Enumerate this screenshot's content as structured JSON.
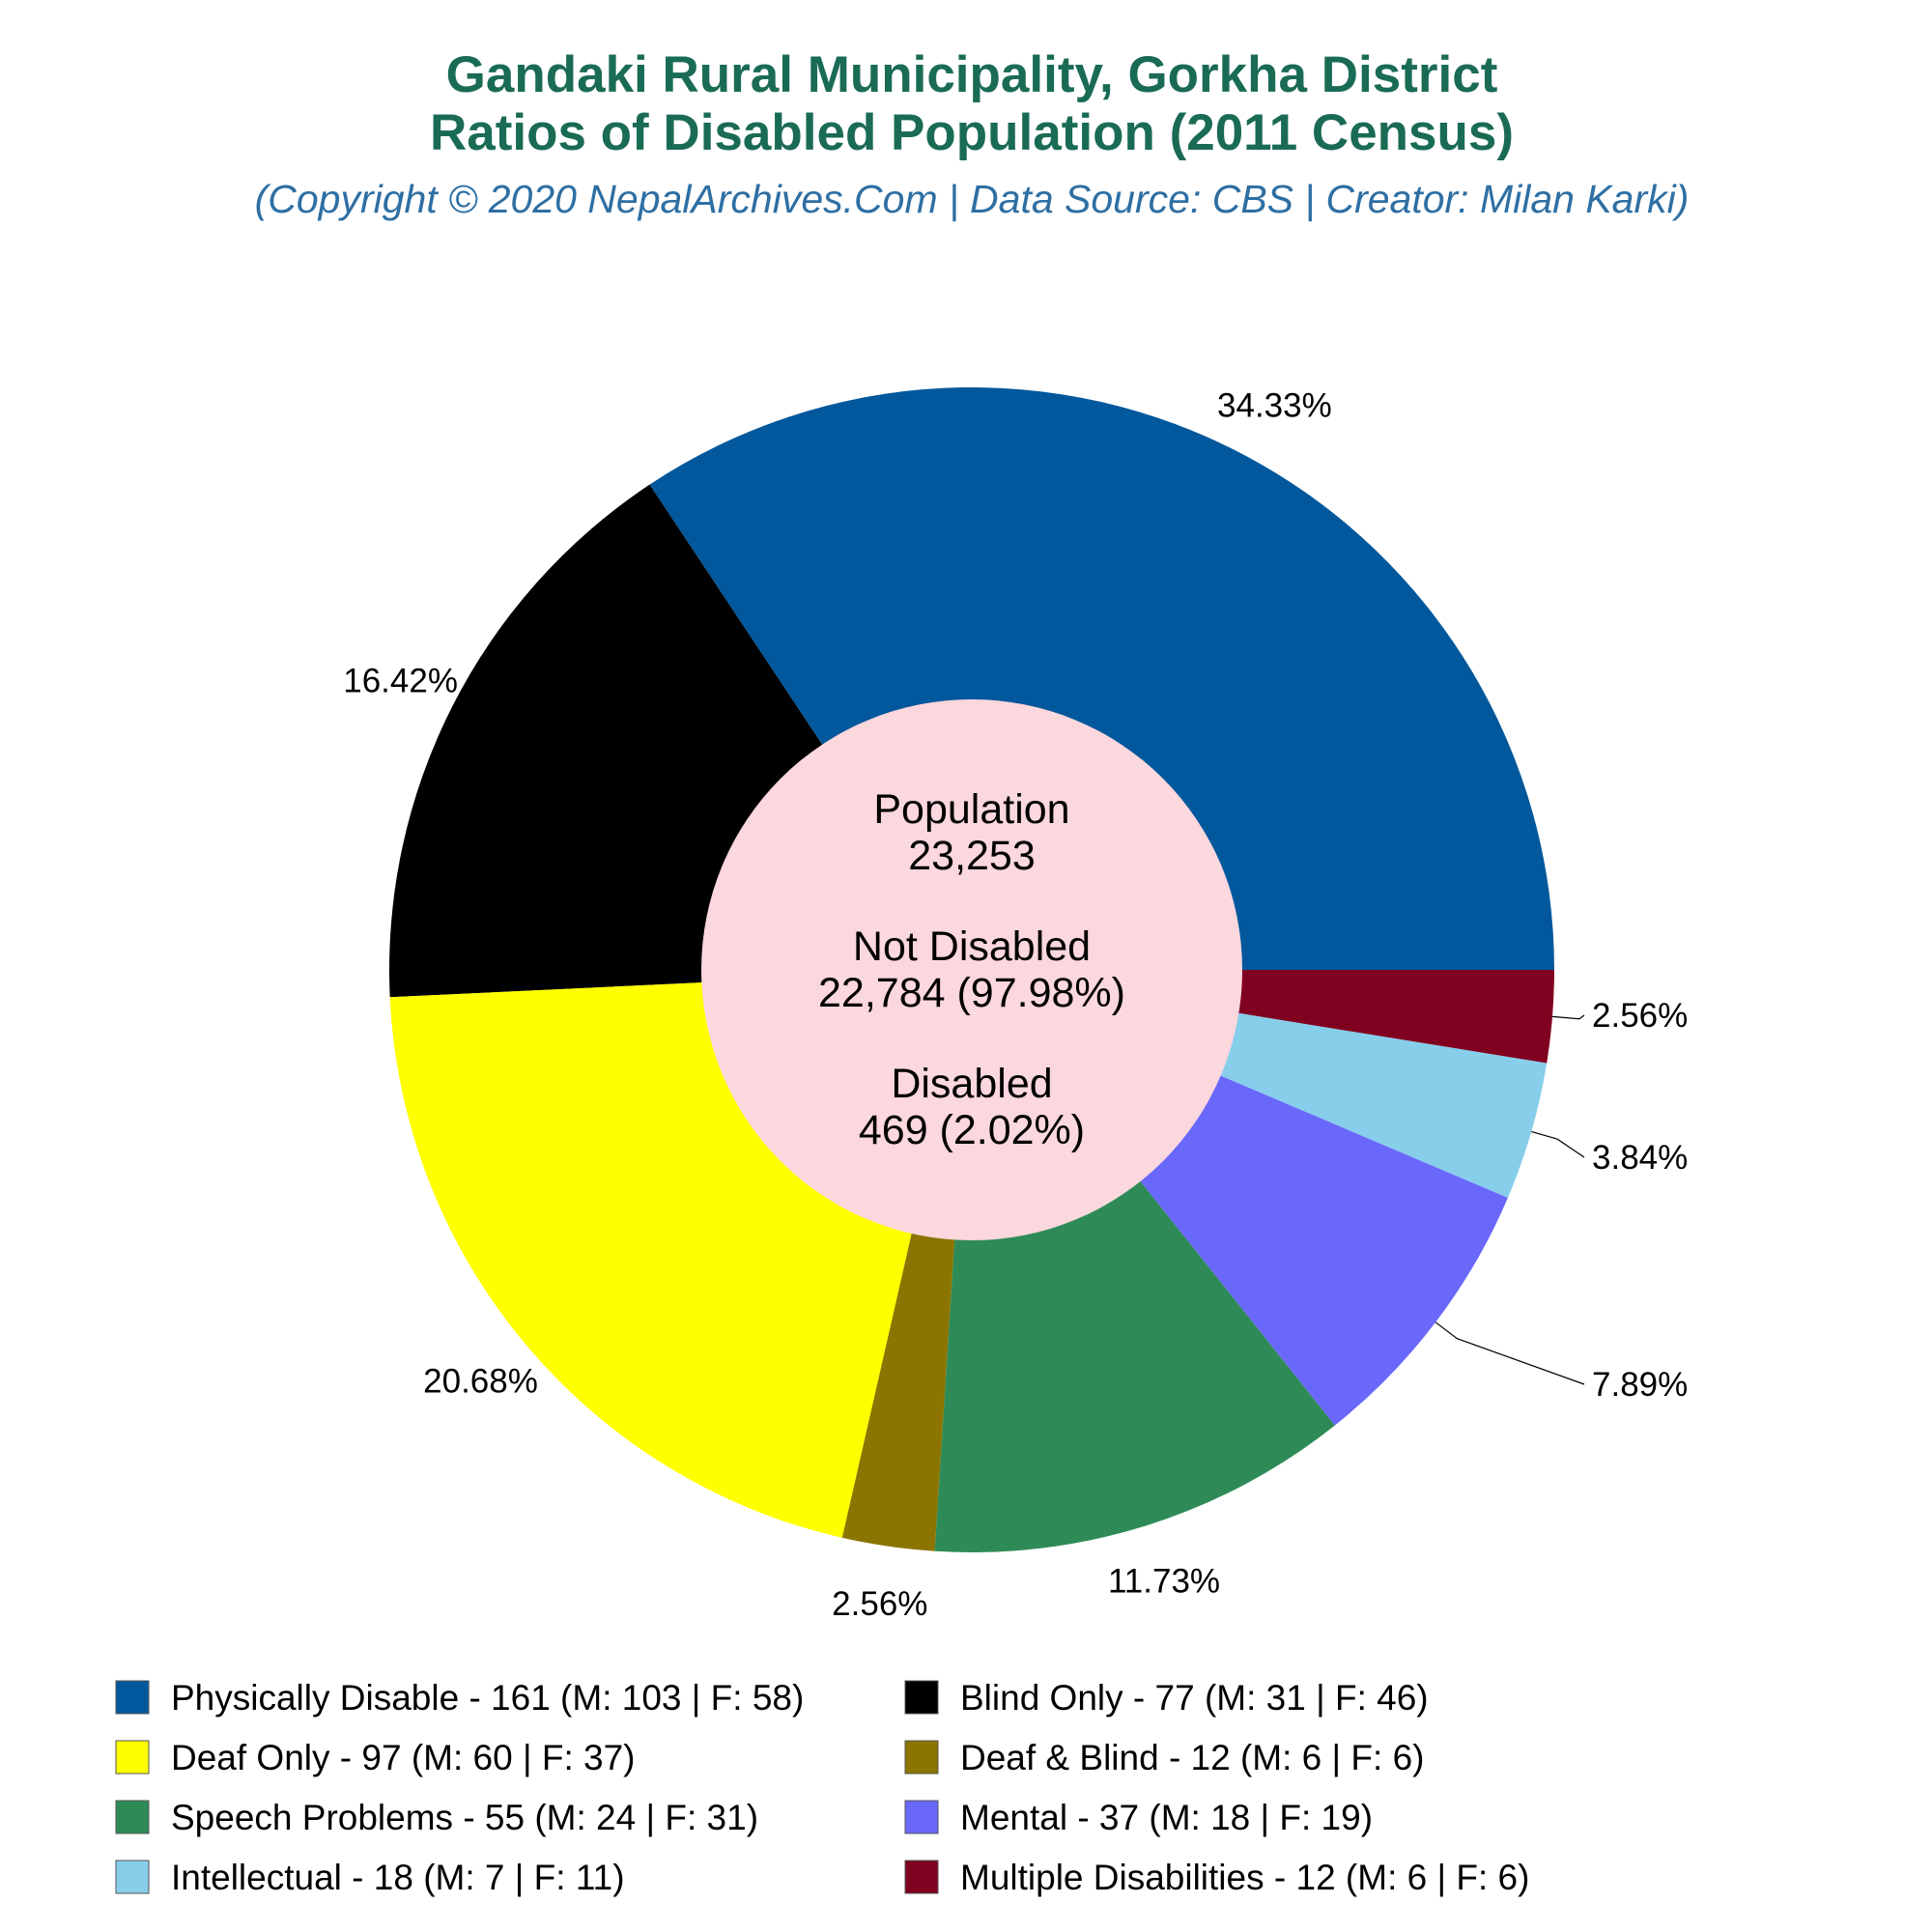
{
  "title_line1": "Gandaki Rural Municipality, Gorkha District",
  "title_line2": "Ratios of Disabled Population (2011 Census)",
  "subtitle": "(Copyright © 2020 NepalArchives.Com | Data Source: CBS | Creator: Milan Karki)",
  "center": {
    "population_label": "Population",
    "population_value": "23,253",
    "not_disabled_label": "Not Disabled",
    "not_disabled_value": "22,784 (97.98%)",
    "disabled_label": "Disabled",
    "disabled_value": "469 (2.02%)"
  },
  "center_color": "#fbd7de",
  "chart_data": {
    "type": "pie",
    "categories": [
      "Physically Disable",
      "Blind Only",
      "Deaf Only",
      "Deaf & Blind",
      "Speech Problems",
      "Mental",
      "Intellectual",
      "Multiple Disabilities"
    ],
    "values": [
      161,
      77,
      97,
      12,
      55,
      37,
      18,
      12
    ],
    "percent_labels": [
      "34.33%",
      "16.42%",
      "20.68%",
      "2.56%",
      "11.73%",
      "7.89%",
      "3.84%",
      "2.56%"
    ],
    "colors": [
      "#02589c",
      "#000000",
      "#ffff00",
      "#8b7500",
      "#2e8b57",
      "#6a67fb",
      "#87ceeb",
      "#800020"
    ],
    "legend": [
      "Physically Disable - 161 (M: 103 | F: 58)",
      "Blind Only - 77 (M: 31 | F: 46)",
      "Deaf Only - 97 (M: 60 | F: 37)",
      "Deaf & Blind - 12 (M: 6 | F: 6)",
      "Speech Problems - 55 (M: 24 | F: 31)",
      "Mental - 37 (M: 18 | F: 19)",
      "Intellectual - 18 (M: 7 | F: 11)",
      "Multiple Disabilities - 12 (M: 6 | F: 6)"
    ],
    "legend_placement": "bottom"
  }
}
